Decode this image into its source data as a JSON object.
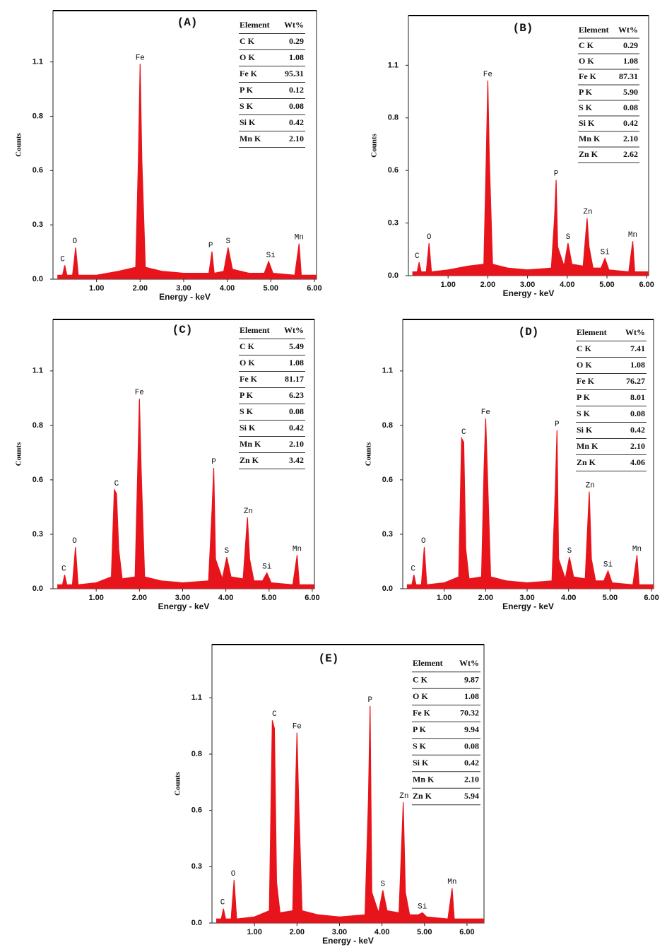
{
  "chart_data": [
    {
      "type": "area",
      "title": "(A)",
      "xlabel": "Energy - keV",
      "ylabel": "Counts",
      "color": "#e8141b",
      "xlim": [
        0,
        6.05
      ],
      "ylim": [
        0,
        1.36
      ],
      "xticks": [
        {
          "value": 1,
          "label": "1.00"
        },
        {
          "value": 2,
          "label": "2.00"
        },
        {
          "value": 3,
          "label": "3.00"
        },
        {
          "value": 4,
          "label": "4.00"
        },
        {
          "value": 5,
          "label": "5.00"
        },
        {
          "value": 6,
          "label": "6.00"
        }
      ],
      "yticks": [
        {
          "value": 0,
          "label": "0.0"
        },
        {
          "value": 0.275,
          "label": "0.3"
        },
        {
          "value": 0.55,
          "label": "0.6"
        },
        {
          "value": 0.825,
          "label": "0.8"
        },
        1.1
      ],
      "x": [
        0.1,
        0.22,
        0.27,
        0.32,
        0.45,
        0.52,
        0.58,
        1.0,
        1.5,
        1.9,
        1.96,
        2.0,
        2.04,
        2.12,
        2.5,
        3.0,
        3.58,
        3.65,
        3.7,
        3.92,
        4.02,
        4.12,
        4.5,
        4.85,
        4.95,
        5.05,
        5.55,
        5.65,
        5.7,
        6.05
      ],
      "values": [
        0.02,
        0.02,
        0.07,
        0.02,
        0.02,
        0.16,
        0.02,
        0.02,
        0.04,
        0.06,
        0.6,
        1.09,
        0.6,
        0.06,
        0.04,
        0.03,
        0.03,
        0.14,
        0.03,
        0.04,
        0.16,
        0.05,
        0.03,
        0.03,
        0.09,
        0.03,
        0.02,
        0.18,
        0.02,
        0.02
      ],
      "peaks": [
        {
          "label": "C",
          "x": 0.22
        },
        {
          "label": "O",
          "x": 0.5
        },
        {
          "label": "Fe",
          "x": 2.0
        },
        {
          "label": "P",
          "x": 3.62
        },
        {
          "label": "S",
          "x": 4.02
        },
        {
          "label": "Si",
          "x": 5.0
        },
        {
          "label": "Mn",
          "x": 5.65
        }
      ],
      "table": {
        "header": [
          "Element",
          "Wt%"
        ],
        "rows": [
          [
            "C K",
            "0.29"
          ],
          [
            "O K",
            "1.08"
          ],
          [
            "Fe K",
            "95.31"
          ],
          [
            "P K",
            "0.12"
          ],
          [
            "S K",
            "0.08"
          ],
          [
            "Si K",
            "0.42"
          ],
          [
            "Mn K",
            "2.10"
          ]
        ]
      }
    },
    {
      "type": "area",
      "title": "(B)",
      "xlabel": "Energy - keV",
      "ylabel": "Counts",
      "color": "#e8141b",
      "xlim": [
        0,
        6.05
      ],
      "ylim": [
        0,
        1.36
      ],
      "xticks": [
        {
          "value": 1,
          "label": "1.00"
        },
        {
          "value": 2,
          "label": "2.00"
        },
        {
          "value": 3,
          "label": "3.00"
        },
        {
          "value": 4,
          "label": "4.00"
        },
        {
          "value": 5,
          "label": "5.00"
        },
        {
          "value": 6,
          "label": "6.00"
        }
      ],
      "yticks": [
        {
          "value": 0,
          "label": "0.0"
        },
        {
          "value": 0.275,
          "label": "0.3"
        },
        {
          "value": 0.55,
          "label": "0.6"
        },
        {
          "value": 0.825,
          "label": "0.8"
        },
        1.1
      ],
      "x": [
        0.1,
        0.22,
        0.27,
        0.32,
        0.45,
        0.52,
        0.58,
        1.0,
        1.5,
        1.9,
        1.96,
        2.0,
        2.04,
        2.12,
        2.5,
        3.0,
        3.6,
        3.68,
        3.72,
        3.76,
        3.92,
        4.02,
        4.12,
        4.4,
        4.5,
        4.55,
        4.65,
        4.85,
        4.95,
        5.05,
        5.55,
        5.65,
        5.7,
        6.05
      ],
      "values": [
        0.02,
        0.02,
        0.07,
        0.02,
        0.02,
        0.17,
        0.02,
        0.03,
        0.05,
        0.06,
        0.6,
        1.02,
        0.6,
        0.06,
        0.04,
        0.03,
        0.04,
        0.3,
        0.5,
        0.15,
        0.05,
        0.17,
        0.06,
        0.05,
        0.3,
        0.15,
        0.04,
        0.04,
        0.09,
        0.03,
        0.02,
        0.18,
        0.02,
        0.02
      ],
      "peaks": [
        {
          "label": "C",
          "x": 0.22
        },
        {
          "label": "O",
          "x": 0.52
        },
        {
          "label": "Fe",
          "x": 2.0
        },
        {
          "label": "P",
          "x": 3.72
        },
        {
          "label": "S",
          "x": 4.02
        },
        {
          "label": "Zn",
          "x": 4.52
        },
        {
          "label": "Si",
          "x": 4.95
        },
        {
          "label": "Mn",
          "x": 5.65
        }
      ],
      "table": {
        "header": [
          "Element",
          "Wt%"
        ],
        "rows": [
          [
            "C K",
            "0.29"
          ],
          [
            "O K",
            "1.08"
          ],
          [
            "Fe K",
            "87.31"
          ],
          [
            "P K",
            "5.90"
          ],
          [
            "S K",
            "0.08"
          ],
          [
            "Si K",
            "0.42"
          ],
          [
            "Mn K",
            "2.10"
          ],
          [
            "Zn K",
            "2.62"
          ]
        ]
      }
    },
    {
      "type": "area",
      "title": "(C)",
      "xlabel": "Energy - keV",
      "ylabel": "Counts",
      "color": "#e8141b",
      "xlim": [
        0,
        6.05
      ],
      "ylim": [
        0,
        1.36
      ],
      "xticks": [
        {
          "value": 1,
          "label": "1.00"
        },
        {
          "value": 2,
          "label": "2.00"
        },
        {
          "value": 3,
          "label": "3.00"
        },
        {
          "value": 4,
          "label": "4.00"
        },
        {
          "value": 5,
          "label": "5.00"
        },
        {
          "value": 6,
          "label": "6.00"
        }
      ],
      "yticks": [
        {
          "value": 0,
          "label": "0.0"
        },
        {
          "value": 0.275,
          "label": "0.3"
        },
        {
          "value": 0.55,
          "label": "0.6"
        },
        {
          "value": 0.825,
          "label": "0.8"
        },
        1.1
      ],
      "x": [
        0.1,
        0.22,
        0.27,
        0.32,
        0.45,
        0.52,
        0.58,
        1.0,
        1.35,
        1.42,
        1.47,
        1.52,
        1.6,
        1.9,
        1.96,
        2.0,
        2.04,
        2.12,
        2.5,
        3.0,
        3.6,
        3.68,
        3.72,
        3.76,
        3.92,
        4.02,
        4.12,
        4.4,
        4.5,
        4.55,
        4.65,
        4.85,
        4.95,
        5.05,
        5.55,
        5.65,
        5.7,
        6.05
      ],
      "values": [
        0.02,
        0.02,
        0.07,
        0.02,
        0.02,
        0.21,
        0.02,
        0.03,
        0.06,
        0.5,
        0.48,
        0.2,
        0.05,
        0.06,
        0.6,
        0.96,
        0.6,
        0.06,
        0.04,
        0.03,
        0.04,
        0.4,
        0.61,
        0.15,
        0.05,
        0.16,
        0.06,
        0.05,
        0.36,
        0.15,
        0.04,
        0.04,
        0.08,
        0.03,
        0.02,
        0.17,
        0.02,
        0.02
      ],
      "peaks": [
        {
          "label": "C",
          "x": 0.25
        },
        {
          "label": "O",
          "x": 0.5
        },
        {
          "label": "C",
          "x": 1.47
        },
        {
          "label": "Fe",
          "x": 2.0
        },
        {
          "label": "P",
          "x": 3.72
        },
        {
          "label": "S",
          "x": 4.02
        },
        {
          "label": "Zn",
          "x": 4.52
        },
        {
          "label": "Si",
          "x": 4.95
        },
        {
          "label": "Mn",
          "x": 5.65
        }
      ],
      "table": {
        "header": [
          "Element",
          "Wt%"
        ],
        "rows": [
          [
            "C K",
            "5.49"
          ],
          [
            "O K",
            "1.08"
          ],
          [
            "Fe K",
            "81.17"
          ],
          [
            "P K",
            "6.23"
          ],
          [
            "S K",
            "0.08"
          ],
          [
            "Si K",
            "0.42"
          ],
          [
            "Mn K",
            "2.10"
          ],
          [
            "Zn K",
            "3.42"
          ]
        ]
      }
    },
    {
      "type": "area",
      "title": "(D)",
      "xlabel": "Energy - keV",
      "ylabel": "Counts",
      "color": "#e8141b",
      "xlim": [
        0,
        6.05
      ],
      "ylim": [
        0,
        1.36
      ],
      "xticks": [
        {
          "value": 1,
          "label": "1.00"
        },
        {
          "value": 2,
          "label": "2.00"
        },
        {
          "value": 3,
          "label": "3.00"
        },
        {
          "value": 4,
          "label": "4.00"
        },
        {
          "value": 5,
          "label": "5.00"
        },
        {
          "value": 6,
          "label": "6.00"
        }
      ],
      "yticks": [
        {
          "value": 0,
          "label": "0.0"
        },
        {
          "value": 0.275,
          "label": "0.3"
        },
        {
          "value": 0.55,
          "label": "0.6"
        },
        {
          "value": 0.825,
          "label": "0.8"
        },
        1.1
      ],
      "x": [
        0.1,
        0.22,
        0.27,
        0.32,
        0.45,
        0.52,
        0.58,
        1.0,
        1.35,
        1.42,
        1.47,
        1.52,
        1.6,
        1.9,
        1.96,
        2.0,
        2.04,
        2.12,
        2.5,
        3.0,
        3.6,
        3.68,
        3.72,
        3.76,
        3.92,
        4.02,
        4.12,
        4.4,
        4.5,
        4.55,
        4.65,
        4.85,
        4.95,
        5.05,
        5.55,
        5.65,
        5.7,
        6.05
      ],
      "values": [
        0.02,
        0.02,
        0.07,
        0.02,
        0.02,
        0.21,
        0.02,
        0.03,
        0.06,
        0.76,
        0.74,
        0.2,
        0.05,
        0.06,
        0.6,
        0.86,
        0.6,
        0.06,
        0.04,
        0.03,
        0.04,
        0.5,
        0.8,
        0.15,
        0.05,
        0.16,
        0.06,
        0.05,
        0.49,
        0.15,
        0.04,
        0.04,
        0.09,
        0.03,
        0.02,
        0.17,
        0.02,
        0.02
      ],
      "peaks": [
        {
          "label": "C",
          "x": 0.25
        },
        {
          "label": "O",
          "x": 0.5
        },
        {
          "label": "C",
          "x": 1.47
        },
        {
          "label": "Fe",
          "x": 2.0
        },
        {
          "label": "P",
          "x": 3.72
        },
        {
          "label": "S",
          "x": 4.02
        },
        {
          "label": "Zn",
          "x": 4.52
        },
        {
          "label": "Si",
          "x": 4.95
        },
        {
          "label": "Mn",
          "x": 5.65
        }
      ],
      "table": {
        "header": [
          "Element",
          "Wt%"
        ],
        "rows": [
          [
            "C K",
            "7.41"
          ],
          [
            "O K",
            "1.08"
          ],
          [
            "Fe K",
            "76.27"
          ],
          [
            "P K",
            "8.01"
          ],
          [
            "S K",
            "0.08"
          ],
          [
            "Si K",
            "0.42"
          ],
          [
            "Mn K",
            "2.10"
          ],
          [
            "Zn K",
            "4.06"
          ]
        ]
      }
    },
    {
      "type": "area",
      "title": "(E)",
      "xlabel": "Energy - keV",
      "ylabel": "Counts",
      "color": "#e8141b",
      "xlim": [
        0,
        6.4
      ],
      "ylim": [
        0,
        1.36
      ],
      "xticks": [
        {
          "value": 1,
          "label": "1.00"
        },
        {
          "value": 2,
          "label": "2.00"
        },
        {
          "value": 3,
          "label": "3.00"
        },
        {
          "value": 4,
          "label": "4.00"
        },
        {
          "value": 5,
          "label": "5.00"
        },
        {
          "value": 6,
          "label": "6.00"
        }
      ],
      "yticks": [
        {
          "value": 0,
          "label": "0.0"
        },
        {
          "value": 0.275,
          "label": "0.3"
        },
        {
          "value": 0.55,
          "label": "0.6"
        },
        {
          "value": 0.825,
          "label": "0.8"
        },
        1.1
      ],
      "x": [
        0.1,
        0.22,
        0.27,
        0.32,
        0.45,
        0.52,
        0.58,
        1.0,
        1.35,
        1.42,
        1.47,
        1.52,
        1.6,
        1.9,
        1.96,
        2.0,
        2.04,
        2.12,
        2.5,
        3.0,
        3.6,
        3.68,
        3.72,
        3.76,
        3.92,
        4.02,
        4.12,
        4.4,
        4.5,
        4.55,
        4.65,
        4.85,
        4.95,
        5.05,
        5.55,
        5.65,
        5.7,
        6.4
      ],
      "values": [
        0.02,
        0.02,
        0.07,
        0.02,
        0.02,
        0.21,
        0.02,
        0.03,
        0.06,
        0.99,
        0.95,
        0.2,
        0.05,
        0.06,
        0.6,
        0.93,
        0.6,
        0.06,
        0.04,
        0.03,
        0.04,
        0.6,
        1.06,
        0.15,
        0.05,
        0.16,
        0.06,
        0.05,
        0.59,
        0.15,
        0.04,
        0.04,
        0.05,
        0.03,
        0.02,
        0.17,
        0.02,
        0.02
      ],
      "peaks": [
        {
          "label": "C",
          "x": 0.25
        },
        {
          "label": "O",
          "x": 0.5
        },
        {
          "label": "C",
          "x": 1.47
        },
        {
          "label": "Fe",
          "x": 2.0
        },
        {
          "label": "P",
          "x": 3.72
        },
        {
          "label": "S",
          "x": 4.02
        },
        {
          "label": "Zn",
          "x": 4.52
        },
        {
          "label": "Si",
          "x": 4.95
        },
        {
          "label": "Mn",
          "x": 5.65
        }
      ],
      "table": {
        "header": [
          "Element",
          "Wt%"
        ],
        "rows": [
          [
            "C K",
            "9.87"
          ],
          [
            "O K",
            "1.08"
          ],
          [
            "Fe K",
            "70.32"
          ],
          [
            "P K",
            "9.94"
          ],
          [
            "S K",
            "0.08"
          ],
          [
            "Si K",
            "0.42"
          ],
          [
            "Mn K",
            "2.10"
          ],
          [
            "Zn K",
            "5.94"
          ]
        ]
      }
    }
  ]
}
